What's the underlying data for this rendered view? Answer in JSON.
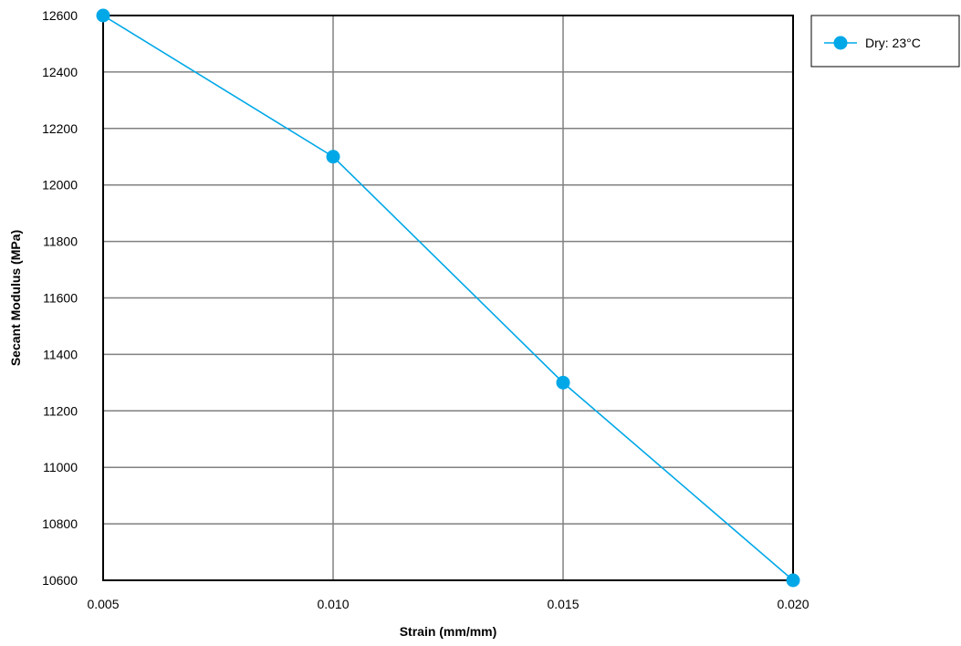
{
  "chart_data": {
    "type": "line",
    "title": "",
    "xlabel": "Strain (mm/mm)",
    "ylabel": "Secant Modulus (MPa)",
    "x": [
      0.005,
      0.01,
      0.015,
      0.02
    ],
    "xlim": [
      0.005,
      0.02
    ],
    "ylim": [
      10600,
      12600
    ],
    "x_ticks": [
      "0.005",
      "0.010",
      "0.015",
      "0.020"
    ],
    "y_ticks": [
      "10600",
      "10800",
      "11000",
      "11200",
      "11400",
      "11600",
      "11800",
      "12000",
      "12200",
      "12400",
      "12600"
    ],
    "grid": true,
    "legend_position": "top-right, outside plot",
    "series": [
      {
        "name": "Dry: 23°C",
        "color": "#00a8e8",
        "marker": "circle",
        "values": [
          12600,
          12100,
          11300,
          10600
        ]
      }
    ]
  },
  "colors": {
    "grid": "#808080",
    "frame": "#000000",
    "series": "#00a8e8"
  }
}
